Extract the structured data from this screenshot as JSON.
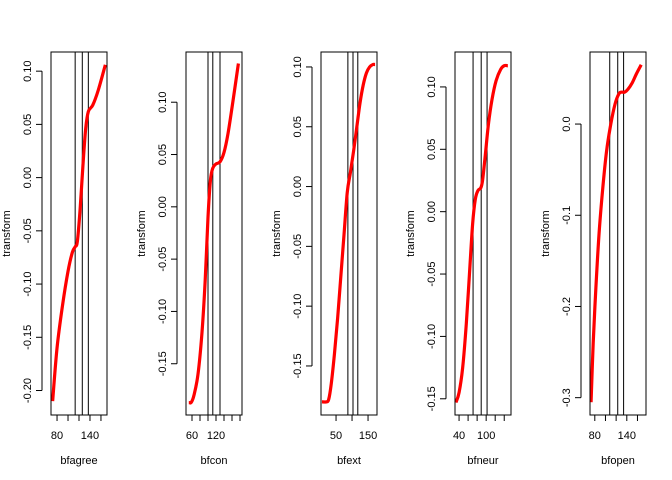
{
  "chart_data": [
    {
      "type": "line",
      "xlabel": "bfagree",
      "ylabel": "transform",
      "xlim": [
        69,
        171
      ],
      "ylim": [
        -0.223,
        0.118
      ],
      "x_ticks": [
        80,
        100,
        120,
        140,
        160
      ],
      "x_tick_labels": [
        "80",
        "140"
      ],
      "x_tick_label_values": [
        80,
        140
      ],
      "y_ticks": [
        -0.2,
        -0.15,
        -0.1,
        -0.05,
        0.0,
        0.05,
        0.1
      ],
      "y_tick_labels": [
        "-0.20",
        "-0.15",
        "-0.10",
        "-0.05",
        "0.00",
        "0.05",
        "0.10"
      ],
      "vlines": [
        113,
        126,
        137
      ],
      "series": [
        {
          "color": "#ff0000",
          "x": [
            72,
            80,
            90,
            100,
            108,
            113,
            117,
            122,
            127,
            132,
            137,
            145,
            155,
            168
          ],
          "y": [
            -0.21,
            -0.16,
            -0.12,
            -0.088,
            -0.07,
            -0.065,
            -0.06,
            -0.03,
            0.01,
            0.045,
            0.062,
            0.068,
            0.082,
            0.106
          ]
        }
      ]
    },
    {
      "type": "line",
      "xlabel": "bfcon",
      "ylabel": "transform",
      "xlim": [
        45,
        185
      ],
      "ylim": [
        -0.199,
        0.148
      ],
      "x_ticks": [
        60,
        80,
        100,
        120,
        140,
        160,
        180
      ],
      "x_tick_labels": [
        "60",
        "120"
      ],
      "x_tick_label_values": [
        60,
        120
      ],
      "y_ticks": [
        -0.15,
        -0.1,
        -0.05,
        0.0,
        0.05,
        0.1
      ],
      "y_tick_labels": [
        "-0.15",
        "-0.10",
        "-0.05",
        "0.00",
        "0.05",
        "0.10"
      ],
      "vlines": [
        100,
        112,
        130
      ],
      "series": [
        {
          "color": "#ff0000",
          "x": [
            52,
            58,
            65,
            75,
            85,
            93,
            100,
            106,
            112,
            120,
            130,
            140,
            150,
            162,
            176
          ],
          "y": [
            -0.187,
            -0.187,
            -0.18,
            -0.16,
            -0.12,
            -0.07,
            -0.01,
            0.025,
            0.037,
            0.041,
            0.043,
            0.052,
            0.07,
            0.1,
            0.137
          ]
        }
      ]
    },
    {
      "type": "line",
      "xlabel": "bfext",
      "ylabel": "transform",
      "xlim": [
        3,
        178
      ],
      "ylim": [
        -0.191,
        0.1125
      ],
      "x_ticks": [
        50,
        100,
        150
      ],
      "x_tick_labels": [
        "50",
        "150"
      ],
      "x_tick_label_values": [
        50,
        150
      ],
      "y_ticks": [
        -0.15,
        -0.1,
        -0.05,
        0.0,
        0.05,
        0.1
      ],
      "y_tick_labels": [
        "-0.15",
        "-0.10",
        "-0.05",
        "0.00",
        "0.05",
        "0.10"
      ],
      "vlines": [
        87,
        103,
        118
      ],
      "series": [
        {
          "color": "#ff0000",
          "x": [
            6,
            20,
            27,
            35,
            45,
            55,
            65,
            75,
            85,
            95,
            105,
            115,
            125,
            135,
            145,
            155,
            165,
            172
          ],
          "y": [
            -0.18,
            -0.18,
            -0.178,
            -0.165,
            -0.14,
            -0.11,
            -0.075,
            -0.04,
            -0.005,
            0.012,
            0.03,
            0.05,
            0.07,
            0.085,
            0.095,
            0.1,
            0.102,
            0.102
          ]
        }
      ]
    },
    {
      "type": "line",
      "xlabel": "bfneur",
      "ylabel": "transform",
      "xlim": [
        31,
        155
      ],
      "ylim": [
        -0.163,
        0.128
      ],
      "x_ticks": [
        40,
        60,
        80,
        100,
        120,
        140
      ],
      "x_tick_labels": [
        "40",
        "100"
      ],
      "x_tick_label_values": [
        40,
        100
      ],
      "y_ticks": [
        -0.15,
        -0.1,
        -0.05,
        0.0,
        0.05,
        0.1
      ],
      "y_tick_labels": [
        "-0.15",
        "-0.10",
        "-0.05",
        "0.00",
        "0.05",
        "0.10"
      ],
      "vlines": [
        71,
        89,
        102
      ],
      "series": [
        {
          "color": "#ff0000",
          "x": [
            33,
            40,
            48,
            56,
            63,
            70,
            76,
            82,
            88,
            92,
            98,
            105,
            113,
            122,
            132,
            140,
            148
          ],
          "y": [
            -0.153,
            -0.145,
            -0.125,
            -0.09,
            -0.05,
            -0.01,
            0.01,
            0.017,
            0.019,
            0.025,
            0.045,
            0.07,
            0.09,
            0.105,
            0.114,
            0.117,
            0.117
          ]
        }
      ]
    },
    {
      "type": "line",
      "xlabel": "bfopen",
      "ylabel": "transform",
      "xlim": [
        71,
        176
      ],
      "ylim": [
        -0.319,
        0.079
      ],
      "x_ticks": [
        80,
        100,
        120,
        140,
        160
      ],
      "x_tick_labels": [
        "80",
        "140"
      ],
      "x_tick_label_values": [
        80,
        140
      ],
      "y_ticks": [
        -0.3,
        -0.2,
        -0.1,
        0.0
      ],
      "y_tick_labels": [
        "-0.3",
        "-0.2",
        "-0.1",
        "0.0"
      ],
      "vlines": [
        108,
        123,
        134
      ],
      "series": [
        {
          "color": "#ff0000",
          "x": [
            73,
            77,
            82,
            88,
            95,
            102,
            110,
            118,
            125,
            130,
            136,
            142,
            150,
            158,
            167
          ],
          "y": [
            -0.305,
            -0.24,
            -0.18,
            -0.12,
            -0.07,
            -0.03,
            0.0,
            0.022,
            0.033,
            0.035,
            0.035,
            0.038,
            0.045,
            0.055,
            0.065
          ]
        }
      ]
    }
  ]
}
